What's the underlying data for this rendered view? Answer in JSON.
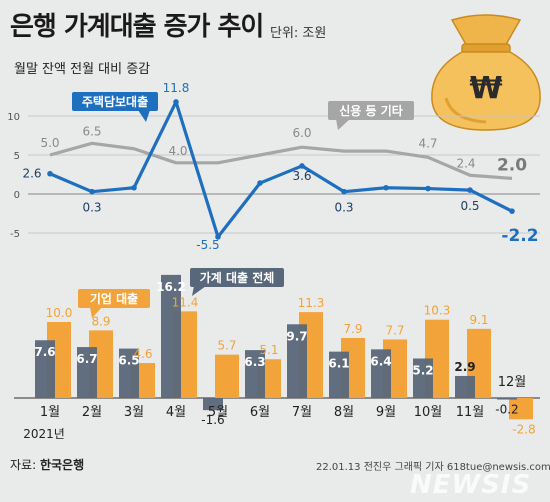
{
  "header": {
    "title": "은행 가계대출 증가 추이",
    "unit": "단위: 조원",
    "subtitle": "월말 잔액 전월 대비 증감"
  },
  "footer": {
    "source_label": "자료:",
    "source_name": "한국은행",
    "credit": "22.01.13 전진우 그래픽 기자 618tue@newsis.com",
    "watermark": "NEWSIS"
  },
  "icon": {
    "name": "money-bag-icon",
    "symbol": "₩"
  },
  "colors": {
    "background": "#e9eaea",
    "mortgage": "#1f6fbf",
    "credit_etc": "#a6a6a6",
    "corporate": "#f2a33a",
    "household": "#58677a",
    "bag": "#f5c15c",
    "bag_dark": "#d9982a"
  },
  "chart_data": [
    {
      "type": "line",
      "categories": [
        "1월",
        "2월",
        "3월",
        "4월",
        "5월",
        "6월",
        "7월",
        "8월",
        "9월",
        "10월",
        "11월",
        "12월"
      ],
      "series": [
        {
          "name": "주택담보대출",
          "values": [
            2.6,
            0.3,
            0.8,
            11.8,
            -5.5,
            1.4,
            3.6,
            0.3,
            0.8,
            0.7,
            0.5,
            -2.2
          ]
        },
        {
          "name": "신용 등 기타",
          "values": [
            5.0,
            6.5,
            5.8,
            4.0,
            4.0,
            5.0,
            6.0,
            5.5,
            5.5,
            4.7,
            2.4,
            2.0
          ]
        }
      ],
      "data_labels": {
        "주택담보대출": [
          "2.6",
          "0.3",
          "",
          "11.8",
          "-5.5",
          "",
          "3.6",
          "0.3",
          "",
          "",
          "0.5",
          "-2.2"
        ],
        "신용 등 기타": [
          "5.0",
          "6.5",
          "",
          "4.0",
          "",
          "",
          "6.0",
          "",
          "",
          "4.7",
          "2.4",
          "2.0"
        ]
      },
      "y_ticks": [
        10,
        5,
        0,
        -5
      ],
      "ylim": [
        -6.5,
        13
      ],
      "grid": true
    },
    {
      "type": "bar",
      "categories": [
        "1월",
        "2월",
        "3월",
        "4월",
        "5월",
        "6월",
        "7월",
        "8월",
        "9월",
        "10월",
        "11월",
        "12월"
      ],
      "x_note": "2021년",
      "series": [
        {
          "name": "가계 대출 전체",
          "values": [
            7.6,
            6.7,
            6.5,
            16.2,
            -1.6,
            6.3,
            9.7,
            6.1,
            6.4,
            5.2,
            2.9,
            -0.2
          ]
        },
        {
          "name": "기업 대출",
          "values": [
            10.0,
            8.9,
            4.6,
            11.4,
            5.7,
            5.1,
            11.3,
            7.9,
            7.7,
            10.3,
            9.1,
            -2.8
          ]
        }
      ],
      "ylim": [
        -3,
        17
      ]
    }
  ]
}
